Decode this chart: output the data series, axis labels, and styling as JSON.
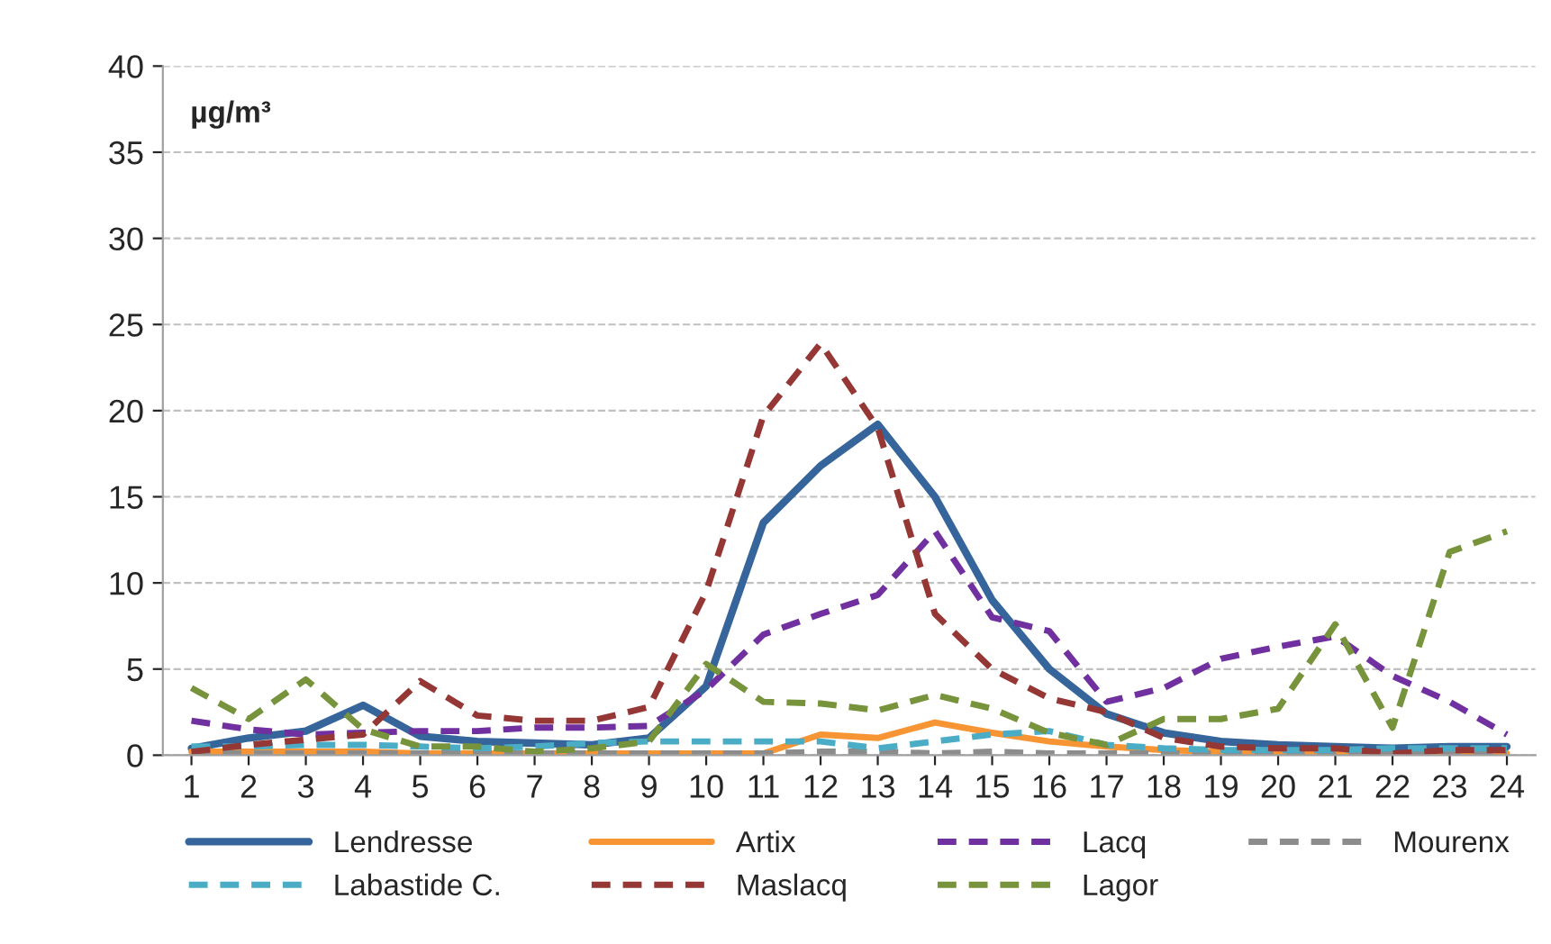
{
  "chart_data": {
    "type": "line",
    "ylabel": "µg/m³",
    "categories": [
      "1",
      "2",
      "3",
      "4",
      "5",
      "6",
      "7",
      "8",
      "9",
      "10",
      "11",
      "12",
      "13",
      "14",
      "15",
      "16",
      "17",
      "18",
      "19",
      "20",
      "21",
      "22",
      "23",
      "24"
    ],
    "ylim": [
      0,
      40
    ],
    "yticks": [
      0,
      5,
      10,
      15,
      20,
      25,
      30,
      35,
      40
    ],
    "grid": "y",
    "legend": "bottom",
    "series": [
      {
        "name": "Lendresse",
        "color": "#35659a",
        "line_style": "solid",
        "values": [
          0.4,
          1.0,
          1.4,
          2.9,
          1.1,
          0.8,
          0.7,
          0.6,
          1.0,
          4.0,
          13.5,
          16.8,
          19.2,
          15,
          9,
          5,
          2.4,
          1.3,
          0.8,
          0.6,
          0.5,
          0.4,
          0.5,
          0.5
        ]
      },
      {
        "name": "Artix",
        "color": "#f79433",
        "line_style": "solid",
        "values": [
          0.2,
          0.2,
          0.2,
          0.2,
          0.1,
          0.1,
          0.1,
          0.1,
          0.1,
          0.1,
          0.1,
          1.2,
          1.0,
          1.9,
          1.3,
          0.8,
          0.5,
          0.3,
          0.2,
          0.1,
          0.1,
          0.1,
          0.1,
          0.1
        ]
      },
      {
        "name": "Lacq",
        "color": "#7030a0",
        "line_style": "dashed",
        "values": [
          2.0,
          1.5,
          1.2,
          1.3,
          1.4,
          1.4,
          1.6,
          1.6,
          1.7,
          3.8,
          7.0,
          8.2,
          9.3,
          13.0,
          8.0,
          7.2,
          3.1,
          3.9,
          5.6,
          6.3,
          6.9,
          4.6,
          3.1,
          1.2
        ]
      },
      {
        "name": "Mourenx",
        "color": "#8c8c8c",
        "line_style": "dashed",
        "values": [
          0.1,
          0.1,
          0.1,
          0.1,
          0.1,
          0.1,
          0.1,
          0.1,
          0.1,
          0.1,
          0.1,
          0.2,
          0.2,
          0.1,
          0.2,
          0.1,
          0.1,
          0.1,
          0.1,
          0.1,
          0.1,
          0.1,
          0.1,
          0.1
        ]
      },
      {
        "name": "Labastide C.",
        "color": "#4bacc6",
        "line_style": "dashed",
        "values": [
          0.5,
          0.5,
          0.6,
          0.6,
          0.5,
          0.4,
          0.5,
          0.7,
          0.8,
          0.8,
          0.8,
          0.8,
          0.4,
          0.8,
          1.2,
          1.4,
          0.6,
          0.4,
          0.3,
          0.3,
          0.3,
          0.4,
          0.4,
          0.4
        ]
      },
      {
        "name": "Maslacq",
        "color": "#953735",
        "line_style": "dashed",
        "values": [
          0.2,
          0.6,
          0.9,
          1.2,
          4.3,
          2.3,
          2.0,
          2.0,
          2.8,
          9.5,
          19.7,
          23.9,
          19.0,
          8.2,
          5.0,
          3.3,
          2.5,
          1.0,
          0.5,
          0.4,
          0.4,
          0.1,
          0.3,
          0.3
        ]
      },
      {
        "name": "Lagor",
        "color": "#77933c",
        "line_style": "dashed",
        "values": [
          3.9,
          2.1,
          4.4,
          1.5,
          0.5,
          0.5,
          0.2,
          0.4,
          0.8,
          5.3,
          3.1,
          3.0,
          2.6,
          3.5,
          2.7,
          1.3,
          0.6,
          2.1,
          2.1,
          2.7,
          7.6,
          1.6,
          11.8,
          13.0
        ]
      }
    ]
  }
}
